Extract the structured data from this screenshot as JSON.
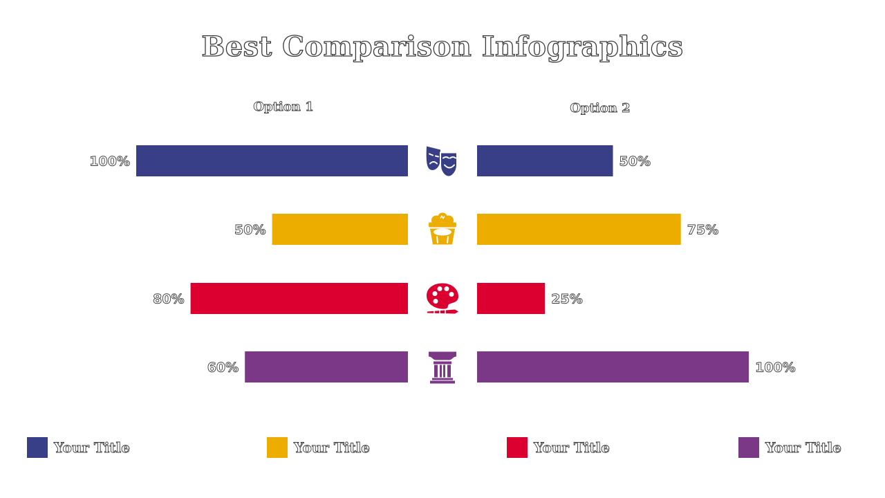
{
  "title": "Best Comparison Infographics",
  "chart_data": {
    "type": "bar",
    "title": "Best Comparison Infographics",
    "series": [
      {
        "name": "Option 1",
        "values": [
          100,
          50,
          80,
          60
        ]
      },
      {
        "name": "Option 2",
        "values": [
          50,
          75,
          25,
          100
        ]
      }
    ],
    "categories": [
      "",
      "",
      "",
      ""
    ],
    "value_labels_option1": [
      "100%",
      "50%",
      "80%",
      "60%"
    ],
    "value_labels_option2": [
      "50%",
      "75%",
      "25%",
      "100%"
    ],
    "colors": [
      "#383F86",
      "#EDAD00",
      "#DC0031",
      "#7A3886"
    ],
    "icons": [
      "theater-masks-icon",
      "popcorn-icon",
      "paint-palette-icon",
      "column-pillar-icon"
    ],
    "xlim": [
      0,
      100
    ],
    "grid": false
  },
  "legend": [
    {
      "label": "Your Title",
      "color": "#383F86"
    },
    {
      "label": "Your Title",
      "color": "#EDAD00"
    },
    {
      "label": "Your Title",
      "color": "#DC0031"
    },
    {
      "label": "Your Title",
      "color": "#7A3886"
    }
  ]
}
